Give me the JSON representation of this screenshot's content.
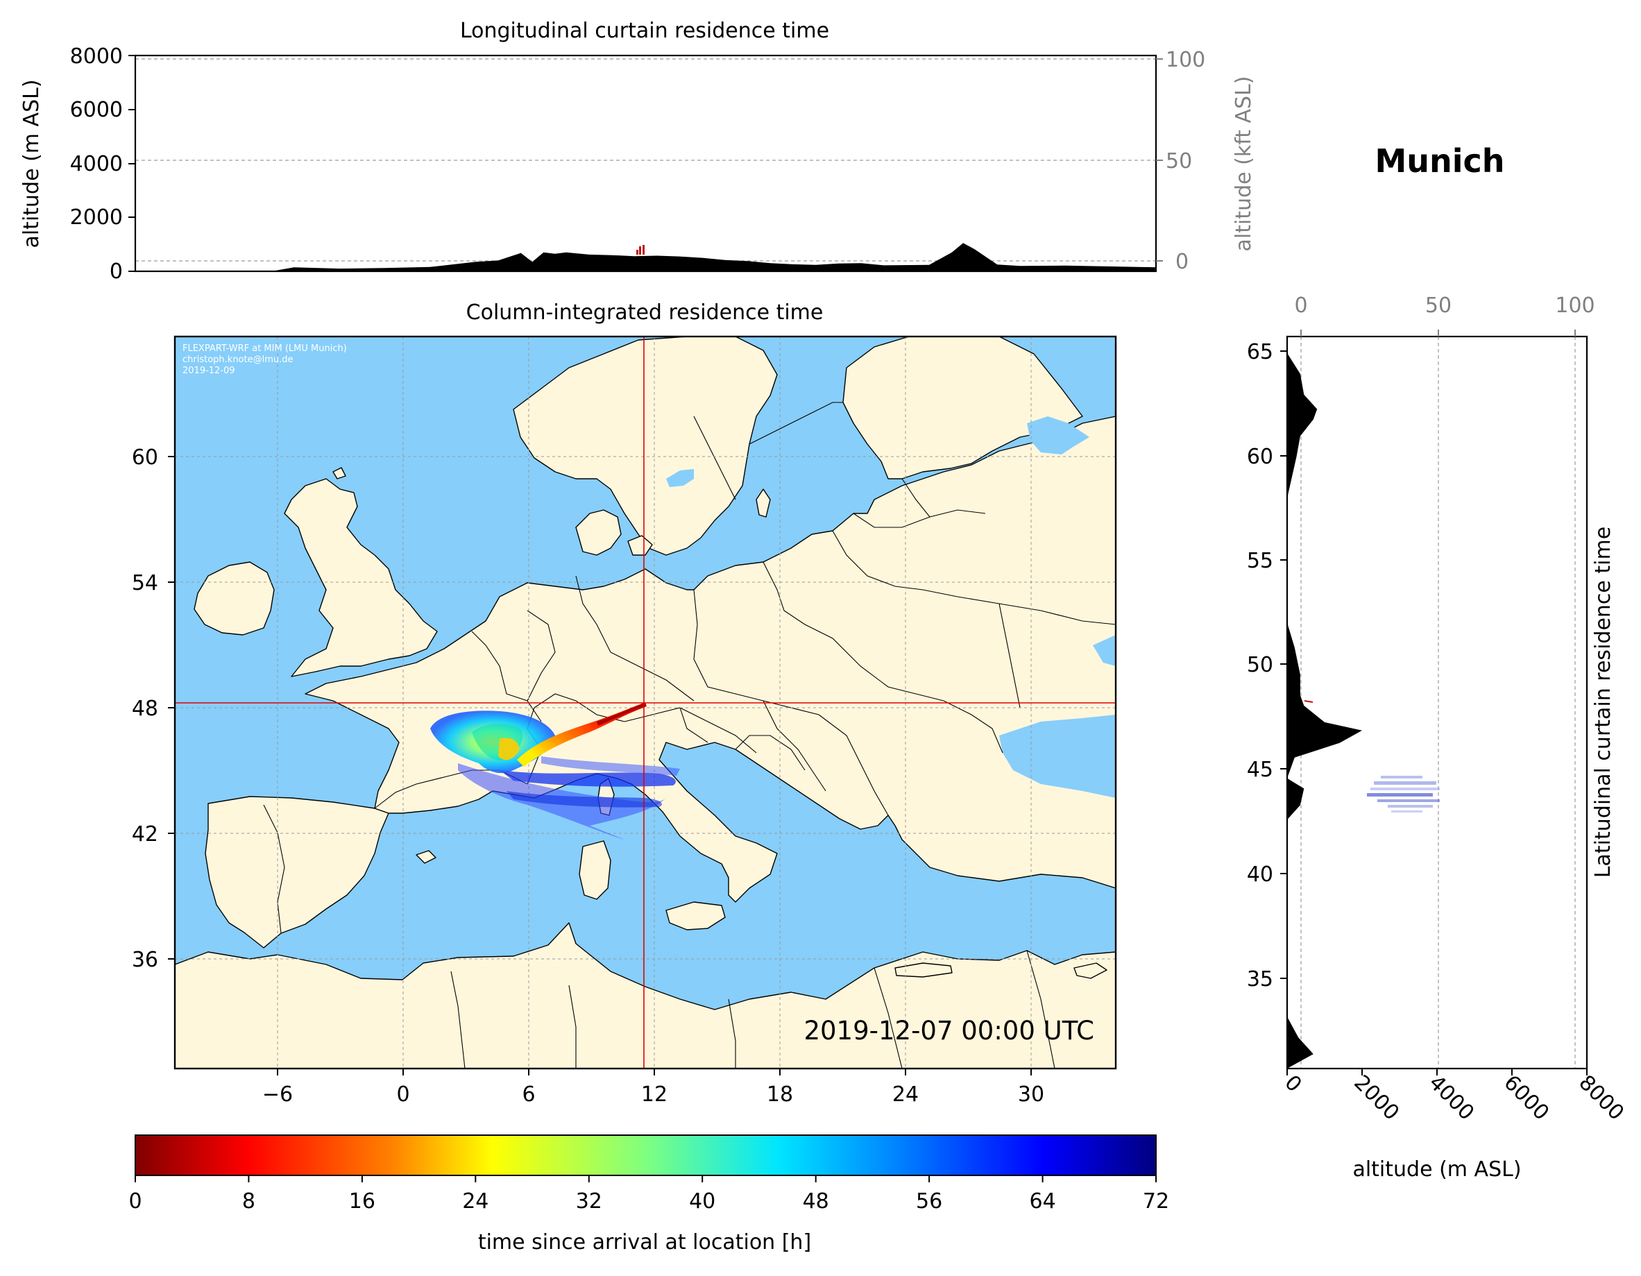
{
  "location_title": "Munich",
  "timestamp": "2019-12-07 00:00 UTC",
  "credits": {
    "line1": "FLEXPART-WRF at MIM (LMU Munich)",
    "line2": "christoph.knote@lmu.de",
    "line3": "2019-12-09"
  },
  "colors": {
    "ocean": "#87cefa",
    "land": "#fff7dc",
    "crosshair": "#e00000",
    "terrain": "#000000"
  },
  "receptor": {
    "lon": 11.6,
    "lat": 48.1
  },
  "longitudinal_panel": {
    "title": "Longitudinal curtain residence time",
    "ylabel": "altitude (m ASL)",
    "y2label": "altitude (kft ASL)",
    "yticks": [
      "0",
      "2000",
      "4000",
      "6000",
      "8000"
    ],
    "y2ticks": [
      "0",
      "50",
      "100"
    ],
    "ylim": [
      0,
      8000
    ],
    "y2lim": [
      0,
      100
    ]
  },
  "map_panel": {
    "title": "Column-integrated residence time",
    "xticks": [
      "−6",
      "0",
      "6",
      "12",
      "18",
      "24",
      "30"
    ],
    "yticks": [
      "36",
      "42",
      "48",
      "54",
      "60"
    ],
    "xlim": [
      -11,
      34
    ],
    "ylim": [
      30,
      65
    ]
  },
  "latitudinal_panel": {
    "title": "Latitudinal curtain residence time",
    "xlabel": "altitude (m ASL)",
    "xticks": [
      "0",
      "2000",
      "4000",
      "6000",
      "8000"
    ],
    "x2ticks": [
      "0",
      "50",
      "100"
    ],
    "yticks": [
      "35",
      "40",
      "45",
      "50",
      "55",
      "60",
      "65"
    ],
    "xlim": [
      0,
      8000
    ],
    "ylim": [
      30.5,
      65.8
    ]
  },
  "colorbar": {
    "label": "time since arrival at location [h]",
    "ticks": [
      "0",
      "8",
      "16",
      "24",
      "32",
      "40",
      "48",
      "56",
      "64",
      "72"
    ],
    "range": [
      0,
      72
    ],
    "colormap": "jet_r"
  },
  "chart_data": [
    {
      "type": "area",
      "name": "longitudinal-terrain-profile",
      "x": [
        -11,
        -5,
        -4,
        -2,
        0,
        2,
        4,
        5,
        6,
        6.5,
        7,
        7.5,
        8,
        9,
        10,
        11,
        12,
        13,
        14,
        15,
        16,
        17,
        18,
        19,
        20,
        21,
        22,
        24,
        25,
        25.5,
        26,
        27,
        28,
        30,
        32,
        34
      ],
      "y": [
        0,
        0,
        150,
        100,
        120,
        160,
        350,
        400,
        680,
        350,
        700,
        650,
        700,
        620,
        600,
        560,
        580,
        550,
        500,
        420,
        380,
        300,
        260,
        240,
        290,
        300,
        220,
        240,
        700,
        1050,
        820,
        250,
        200,
        210,
        180,
        150
      ],
      "xlim": [
        -11,
        34
      ],
      "ylim": [
        0,
        8000
      ]
    },
    {
      "type": "area",
      "name": "latitudinal-terrain-profile",
      "lat": [
        30.5,
        31.2,
        32,
        33,
        42.5,
        43.2,
        44,
        44.5,
        45.5,
        46.2,
        46.8,
        47.2,
        48,
        48.5,
        49.5,
        50.8,
        52,
        53,
        58,
        60,
        61,
        61.8,
        62.3,
        63,
        64,
        65,
        65.8
      ],
      "altitude": [
        0,
        700,
        300,
        0,
        0,
        350,
        450,
        0,
        200,
        1400,
        2000,
        1000,
        450,
        350,
        350,
        200,
        0,
        0,
        0,
        250,
        350,
        700,
        800,
        450,
        350,
        0,
        0
      ],
      "xlim": [
        0,
        8000
      ],
      "ylim": [
        30.5,
        65.8
      ]
    }
  ]
}
